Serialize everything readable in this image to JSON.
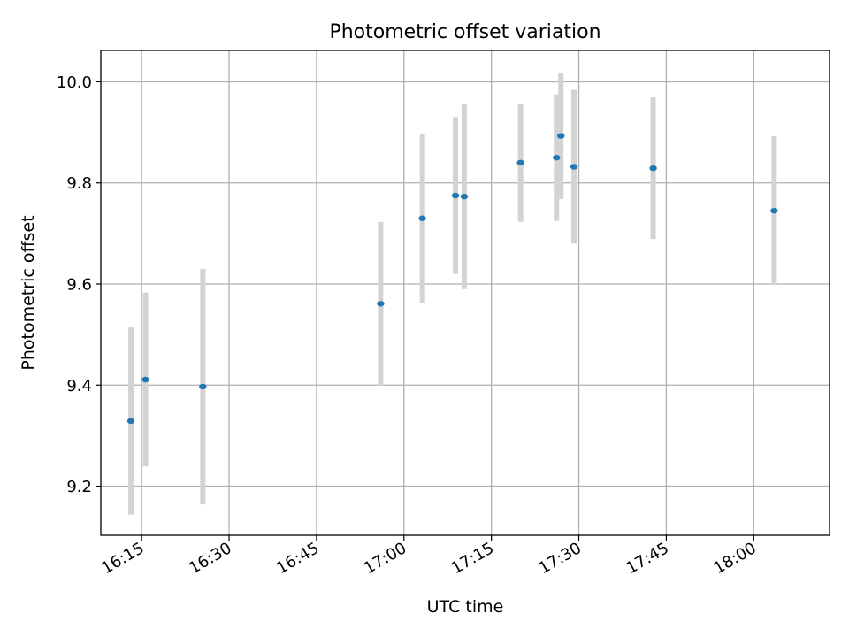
{
  "chart_data": {
    "type": "scatter",
    "title": "Photometric offset variation",
    "xlabel": "UTC time",
    "ylabel": "Photometric offset",
    "x_axis_type": "time",
    "xlim": [
      "16:08",
      "18:13"
    ],
    "ylim": [
      9.103,
      10.062
    ],
    "x_ticks": [
      "16:15",
      "16:30",
      "16:45",
      "17:00",
      "17:15",
      "17:30",
      "17:45",
      "18:00"
    ],
    "y_ticks": [
      9.2,
      9.4,
      9.6,
      9.8,
      10.0
    ],
    "y_tick_labels": [
      "9.2",
      "9.4",
      "9.6",
      "9.8",
      "10.0"
    ],
    "grid": true,
    "legend": "none",
    "series": [
      {
        "points": [
          {
            "x": "16:13:10",
            "y": 9.329,
            "yerr": 0.185
          },
          {
            "x": "16:15:40",
            "y": 9.411,
            "yerr": 0.172
          },
          {
            "x": "16:25:30",
            "y": 9.397,
            "yerr": 0.233
          },
          {
            "x": "16:56:00",
            "y": 9.561,
            "yerr": 0.162
          },
          {
            "x": "17:03:10",
            "y": 9.73,
            "yerr": 0.167
          },
          {
            "x": "17:08:50",
            "y": 9.775,
            "yerr": 0.155
          },
          {
            "x": "17:10:20",
            "y": 9.773,
            "yerr": 0.183
          },
          {
            "x": "17:20:00",
            "y": 9.84,
            "yerr": 0.117
          },
          {
            "x": "17:26:10",
            "y": 9.85,
            "yerr": 0.125
          },
          {
            "x": "17:26:55",
            "y": 9.893,
            "yerr": 0.125
          },
          {
            "x": "17:29:10",
            "y": 9.832,
            "yerr": 0.152
          },
          {
            "x": "17:42:45",
            "y": 9.829,
            "yerr": 0.14
          },
          {
            "x": "18:03:30",
            "y": 9.745,
            "yerr": 0.147
          }
        ]
      }
    ],
    "colors": {
      "marker": "#1f77b4",
      "errorbar": "#d3d3d3",
      "grid": "#b0b0b0"
    }
  }
}
